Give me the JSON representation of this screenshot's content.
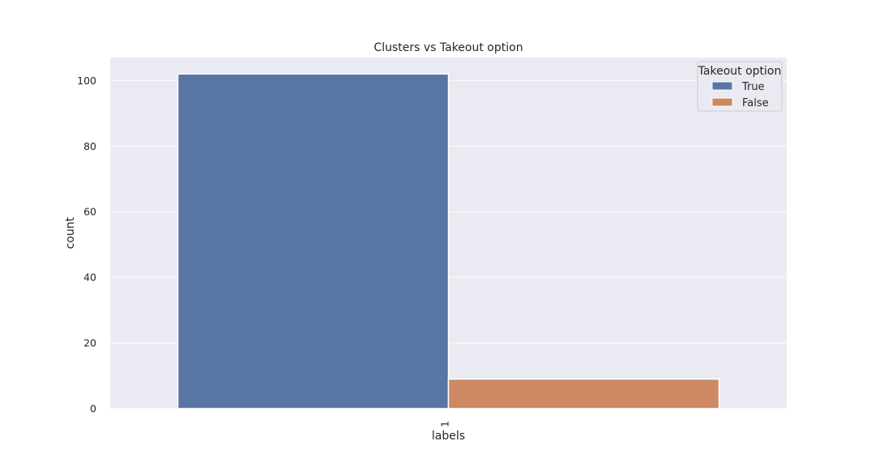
{
  "chart_data": {
    "type": "bar",
    "title": "Clusters vs Takeout option",
    "xlabel": "labels",
    "ylabel": "count",
    "categories": [
      "1"
    ],
    "series": [
      {
        "name": "True",
        "values": [
          102
        ],
        "color": "#5975a4"
      },
      {
        "name": "False",
        "values": [
          9
        ],
        "color": "#cc8963"
      }
    ],
    "ylim": [
      0,
      107
    ],
    "yticks": [
      0,
      20,
      40,
      60,
      80,
      100
    ],
    "grid": true,
    "background": "#eaeaf2",
    "legend": {
      "title": "Takeout option",
      "placement": "top-right"
    }
  }
}
